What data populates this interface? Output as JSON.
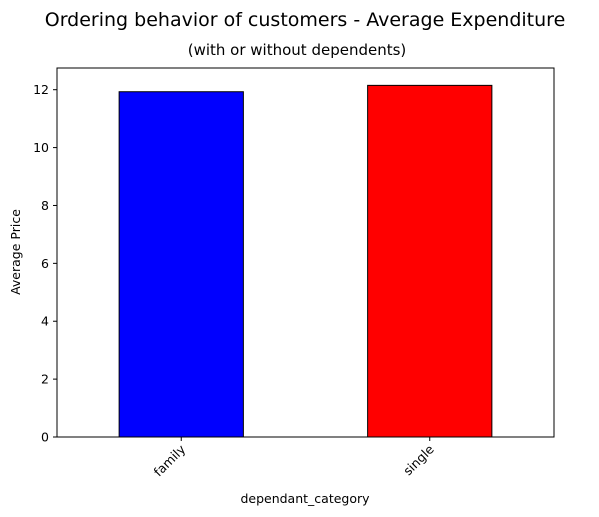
{
  "chart_data": {
    "type": "bar",
    "title": "Ordering behavior of customers - Average Expenditure",
    "subtitle": "(with or without dependents)",
    "xlabel": "dependant_category",
    "ylabel": "Average Price",
    "categories": [
      "family",
      "single"
    ],
    "values": [
      11.93,
      12.15
    ],
    "colors": [
      "#0000ff",
      "#ff0000"
    ],
    "edge_color": "#000000",
    "ylim": [
      0,
      12.75
    ],
    "yticks": [
      0,
      2,
      4,
      6,
      8,
      10,
      12
    ],
    "grid": false,
    "legend": "none",
    "xtick_rotation": -45
  }
}
